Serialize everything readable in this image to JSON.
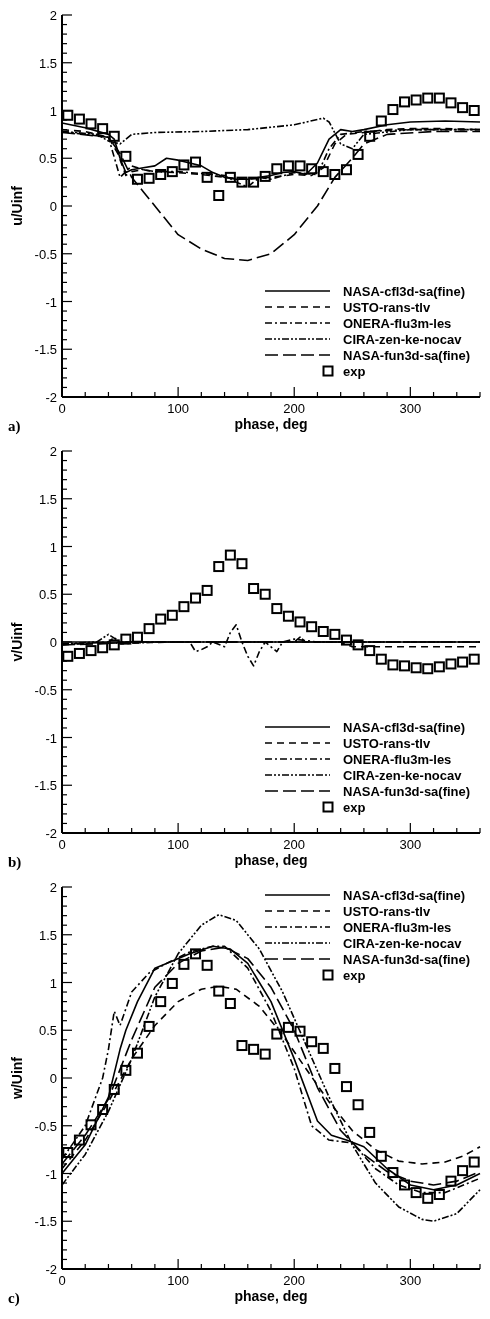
{
  "chart_data": [
    {
      "type": "line",
      "xlabel": "phase, deg",
      "ylabel": "u/Uinf",
      "annotations": [
        "a)"
      ],
      "xlim": [
        0,
        360
      ],
      "ylim": [
        -2,
        2
      ],
      "legend": "bottom right",
      "xticks": [
        0,
        {
          "value": 20,
          "label": null
        },
        {
          "value": 40,
          "label": null
        },
        {
          "value": 60,
          "label": null
        },
        {
          "value": 80,
          "label": null
        },
        100,
        {
          "value": 120,
          "label": null
        },
        {
          "value": 140,
          "label": null
        },
        {
          "value": 160,
          "label": null
        },
        {
          "value": 180,
          "label": null
        },
        200,
        {
          "value": 220,
          "label": null
        },
        {
          "value": 240,
          "label": null
        },
        {
          "value": 260,
          "label": null
        },
        {
          "value": 280,
          "label": null
        },
        300,
        {
          "value": 320,
          "label": null
        },
        {
          "value": 340,
          "label": null
        },
        {
          "value": 360,
          "label": null
        }
      ],
      "yticks": [
        -2,
        {
          "value": -1.9,
          "label": null
        },
        {
          "value": -1.8,
          "label": null
        },
        {
          "value": -1.7,
          "label": null
        },
        {
          "value": -1.6,
          "label": null
        },
        -1.5,
        {
          "value": -1.4,
          "label": null
        },
        {
          "value": -1.3,
          "label": null
        },
        {
          "value": -1.2,
          "label": null
        },
        {
          "value": -1.1,
          "label": null
        },
        -1,
        {
          "value": -0.9,
          "label": null
        },
        {
          "value": -0.8,
          "label": null
        },
        {
          "value": -0.7,
          "label": null
        },
        {
          "value": -0.6,
          "label": null
        },
        -0.5,
        {
          "value": -0.4,
          "label": null
        },
        {
          "value": -0.3,
          "label": null
        },
        {
          "value": -0.2,
          "label": null
        },
        {
          "value": -0.1,
          "label": null
        },
        0,
        {
          "value": 0.1,
          "label": null
        },
        {
          "value": 0.2,
          "label": null
        },
        {
          "value": 0.3,
          "label": null
        },
        {
          "value": 0.4,
          "label": null
        },
        0.5,
        {
          "value": 0.6,
          "label": null
        },
        {
          "value": 0.7,
          "label": null
        },
        {
          "value": 0.8,
          "label": null
        },
        {
          "value": 0.9,
          "label": null
        },
        1,
        {
          "value": 1.1,
          "label": null
        },
        {
          "value": 1.2,
          "label": null
        },
        {
          "value": 1.3,
          "label": null
        },
        {
          "value": 1.4,
          "label": null
        },
        1.5,
        {
          "value": 1.6,
          "label": null
        },
        {
          "value": 1.7,
          "label": null
        },
        {
          "value": 1.8,
          "label": null
        },
        {
          "value": 1.9,
          "label": null
        },
        2
      ],
      "series": [
        {
          "name": "NASA-cfl3d-sa(fine)",
          "color": "#000000",
          "line_style": "solid",
          "x": [
            0,
            20,
            40,
            45,
            50,
            55,
            60,
            70,
            80,
            90,
            100,
            110,
            120,
            130,
            140,
            150,
            160,
            170,
            180,
            190,
            200,
            210,
            220,
            230,
            240,
            250,
            260,
            280,
            300,
            330,
            360
          ],
          "values": [
            0.87,
            0.82,
            0.75,
            0.7,
            0.5,
            0.35,
            0.38,
            0.4,
            0.42,
            0.5,
            0.48,
            0.45,
            0.42,
            0.35,
            0.3,
            0.28,
            0.28,
            0.3,
            0.32,
            0.35,
            0.36,
            0.33,
            0.45,
            0.7,
            0.8,
            0.78,
            0.8,
            0.85,
            0.88,
            0.89,
            0.88
          ]
        },
        {
          "name": "USTO-rans-tlv",
          "color": "#000000",
          "line_style": "dashed",
          "x": [
            0,
            20,
            40,
            48,
            55,
            60,
            70,
            80,
            100,
            120,
            140,
            160,
            180,
            200,
            215,
            225,
            235,
            245,
            260,
            280,
            300,
            330,
            360
          ],
          "values": [
            0.8,
            0.78,
            0.72,
            0.55,
            0.32,
            0.36,
            0.38,
            0.36,
            0.35,
            0.33,
            0.3,
            0.28,
            0.3,
            0.33,
            0.32,
            0.4,
            0.65,
            0.75,
            0.77,
            0.8,
            0.81,
            0.81,
            0.8
          ]
        },
        {
          "name": "ONERA-flu3m-les",
          "color": "#000000",
          "line_style": "dashdot",
          "x": [
            0,
            40,
            50,
            60,
            70,
            80,
            100,
            120,
            140,
            150,
            160,
            170,
            180,
            200,
            220,
            230,
            240,
            260,
            300,
            360
          ],
          "values": [
            0.78,
            0.72,
            0.3,
            0.42,
            0.38,
            0.36,
            0.36,
            0.34,
            0.32,
            0.25,
            0.2,
            0.3,
            0.28,
            0.35,
            0.33,
            0.6,
            0.75,
            0.78,
            0.8,
            0.8
          ]
        },
        {
          "name": "CIRA-zen-ke-nocav",
          "color": "#000000",
          "line_style": "dashdotdot",
          "x": [
            0,
            30,
            40,
            50,
            60,
            80,
            120,
            160,
            200,
            225,
            230,
            240,
            250,
            260,
            300,
            360
          ],
          "values": [
            0.78,
            0.75,
            0.68,
            0.65,
            0.75,
            0.77,
            0.78,
            0.8,
            0.85,
            0.92,
            0.88,
            0.65,
            0.6,
            0.75,
            0.8,
            0.8
          ]
        },
        {
          "name": "NASA-fun3d-sa(fine)",
          "color": "#000000",
          "line_style": "longdash",
          "x": [
            0,
            40,
            50,
            60,
            70,
            80,
            100,
            120,
            140,
            160,
            180,
            200,
            220,
            235,
            250,
            260,
            280,
            320,
            360
          ],
          "values": [
            0.77,
            0.72,
            0.55,
            0.3,
            0.15,
            0,
            -0.3,
            -0.45,
            -0.55,
            -0.57,
            -0.5,
            -0.3,
            0,
            0.3,
            0.5,
            0.65,
            0.75,
            0.78,
            0.78
          ]
        },
        {
          "name": "exp",
          "type": "scatter",
          "marker": "square",
          "color": "#000000",
          "x": [
            5,
            15,
            25,
            35,
            45,
            55,
            65,
            75,
            85,
            95,
            105,
            115,
            125,
            135,
            145,
            155,
            165,
            175,
            185,
            195,
            205,
            215,
            225,
            235,
            245,
            255,
            265,
            275,
            285,
            295,
            305,
            315,
            325,
            335,
            345,
            355
          ],
          "values": [
            0.95,
            0.91,
            0.86,
            0.81,
            0.73,
            0.52,
            0.28,
            0.29,
            0.33,
            0.36,
            0.43,
            0.46,
            0.3,
            0.11,
            0.3,
            0.25,
            0.25,
            0.31,
            0.39,
            0.42,
            0.42,
            0.39,
            0.36,
            0.33,
            0.38,
            0.54,
            0.73,
            0.89,
            1.01,
            1.09,
            1.11,
            1.13,
            1.13,
            1.08,
            1.03,
            1.0
          ]
        }
      ]
    },
    {
      "type": "line",
      "xlabel": "phase, deg",
      "ylabel": "v/Uinf",
      "annotations": [
        "b)"
      ],
      "xlim": [
        0,
        360
      ],
      "ylim": [
        -2,
        2
      ],
      "legend": "bottom right",
      "xticks": [
        0,
        {
          "value": 20,
          "label": null
        },
        {
          "value": 40,
          "label": null
        },
        {
          "value": 60,
          "label": null
        },
        {
          "value": 80,
          "label": null
        },
        100,
        {
          "value": 120,
          "label": null
        },
        {
          "value": 140,
          "label": null
        },
        {
          "value": 160,
          "label": null
        },
        {
          "value": 180,
          "label": null
        },
        200,
        {
          "value": 220,
          "label": null
        },
        {
          "value": 240,
          "label": null
        },
        {
          "value": 260,
          "label": null
        },
        {
          "value": 280,
          "label": null
        },
        300,
        {
          "value": 320,
          "label": null
        },
        {
          "value": 340,
          "label": null
        },
        {
          "value": 360,
          "label": null
        }
      ],
      "yticks": [
        -2,
        {
          "value": -1.9,
          "label": null
        },
        {
          "value": -1.8,
          "label": null
        },
        {
          "value": -1.7,
          "label": null
        },
        {
          "value": -1.6,
          "label": null
        },
        -1.5,
        {
          "value": -1.4,
          "label": null
        },
        {
          "value": -1.3,
          "label": null
        },
        {
          "value": -1.2,
          "label": null
        },
        {
          "value": -1.1,
          "label": null
        },
        -1,
        {
          "value": -0.9,
          "label": null
        },
        {
          "value": -0.8,
          "label": null
        },
        {
          "value": -0.7,
          "label": null
        },
        {
          "value": -0.6,
          "label": null
        },
        -0.5,
        {
          "value": -0.4,
          "label": null
        },
        {
          "value": -0.3,
          "label": null
        },
        {
          "value": -0.2,
          "label": null
        },
        {
          "value": -0.1,
          "label": null
        },
        0,
        {
          "value": 0.1,
          "label": null
        },
        {
          "value": 0.2,
          "label": null
        },
        {
          "value": 0.3,
          "label": null
        },
        {
          "value": 0.4,
          "label": null
        },
        0.5,
        {
          "value": 0.6,
          "label": null
        },
        {
          "value": 0.7,
          "label": null
        },
        {
          "value": 0.8,
          "label": null
        },
        {
          "value": 0.9,
          "label": null
        },
        1,
        {
          "value": 1.1,
          "label": null
        },
        {
          "value": 1.2,
          "label": null
        },
        {
          "value": 1.3,
          "label": null
        },
        {
          "value": 1.4,
          "label": null
        },
        1.5,
        {
          "value": 1.6,
          "label": null
        },
        {
          "value": 1.7,
          "label": null
        },
        {
          "value": 1.8,
          "label": null
        },
        {
          "value": 1.9,
          "label": null
        },
        2
      ],
      "series": [
        {
          "name": "NASA-cfl3d-sa(fine)",
          "color": "#000000",
          "line_style": "solid",
          "x": [
            0,
            360
          ],
          "values": [
            0,
            0
          ]
        },
        {
          "name": "USTO-rans-tlv",
          "color": "#000000",
          "line_style": "dashed",
          "x": [
            0,
            100,
            200,
            240,
            250,
            300,
            360
          ],
          "values": [
            -0.02,
            0,
            0,
            0,
            -0.05,
            -0.05,
            -0.05
          ]
        },
        {
          "name": "ONERA-flu3m-les",
          "color": "#000000",
          "line_style": "dashdot",
          "x": [
            0,
            40,
            45,
            50,
            80,
            110,
            115,
            120,
            125,
            130,
            140,
            145,
            150,
            155,
            160,
            165,
            170,
            175,
            180,
            185,
            190,
            200,
            220,
            360
          ],
          "values": [
            -0.03,
            0,
            0.05,
            -0.02,
            0,
            0,
            -0.1,
            -0.08,
            -0.05,
            0,
            -0.05,
            0.1,
            0.18,
            0,
            -0.15,
            -0.25,
            -0.1,
            0,
            -0.05,
            -0.1,
            0,
            0.03,
            0,
            0
          ]
        },
        {
          "name": "CIRA-zen-ke-nocav",
          "color": "#000000",
          "line_style": "dashdotdot",
          "x": [
            0,
            30,
            40,
            50,
            100,
            200,
            205,
            210,
            250,
            360
          ],
          "values": [
            -0.02,
            0,
            0.08,
            0,
            0,
            0,
            0.05,
            0,
            0,
            0
          ]
        },
        {
          "name": "NASA-fun3d-sa(fine)",
          "color": "#000000",
          "line_style": "longdash",
          "x": [
            0,
            30,
            60,
            150,
            250,
            360
          ],
          "values": [
            -0.03,
            -0.02,
            0,
            0,
            0,
            0
          ]
        },
        {
          "name": "exp",
          "type": "scatter",
          "marker": "square",
          "color": "#000000",
          "x": [
            5,
            15,
            25,
            35,
            45,
            55,
            65,
            75,
            85,
            95,
            105,
            115,
            125,
            135,
            145,
            155,
            165,
            175,
            185,
            195,
            205,
            215,
            225,
            235,
            245,
            255,
            265,
            275,
            285,
            295,
            305,
            315,
            325,
            335,
            345,
            355
          ],
          "values": [
            -0.15,
            -0.12,
            -0.09,
            -0.06,
            -0.03,
            0.03,
            0.05,
            0.14,
            0.24,
            0.28,
            0.37,
            0.46,
            0.54,
            0.79,
            0.91,
            0.82,
            0.56,
            0.5,
            0.35,
            0.27,
            0.21,
            0.16,
            0.11,
            0.08,
            0.02,
            -0.03,
            -0.09,
            -0.18,
            -0.24,
            -0.25,
            -0.27,
            -0.28,
            -0.26,
            -0.23,
            -0.21,
            -0.18
          ]
        }
      ]
    },
    {
      "type": "line",
      "xlabel": "phase, deg",
      "ylabel": "w/Uinf",
      "annotations": [
        "c)"
      ],
      "xlim": [
        0,
        360
      ],
      "ylim": [
        -2,
        2
      ],
      "legend": "top right",
      "xticks": [
        0,
        {
          "value": 20,
          "label": null
        },
        {
          "value": 40,
          "label": null
        },
        {
          "value": 60,
          "label": null
        },
        {
          "value": 80,
          "label": null
        },
        100,
        {
          "value": 120,
          "label": null
        },
        {
          "value": 140,
          "label": null
        },
        {
          "value": 160,
          "label": null
        },
        {
          "value": 180,
          "label": null
        },
        200,
        {
          "value": 220,
          "label": null
        },
        {
          "value": 240,
          "label": null
        },
        {
          "value": 260,
          "label": null
        },
        {
          "value": 280,
          "label": null
        },
        300,
        {
          "value": 320,
          "label": null
        },
        {
          "value": 340,
          "label": null
        },
        {
          "value": 360,
          "label": null
        }
      ],
      "yticks": [
        -2,
        {
          "value": -1.9,
          "label": null
        },
        {
          "value": -1.8,
          "label": null
        },
        {
          "value": -1.7,
          "label": null
        },
        {
          "value": -1.6,
          "label": null
        },
        -1.5,
        {
          "value": -1.4,
          "label": null
        },
        {
          "value": -1.3,
          "label": null
        },
        {
          "value": -1.2,
          "label": null
        },
        {
          "value": -1.1,
          "label": null
        },
        -1,
        {
          "value": -0.9,
          "label": null
        },
        {
          "value": -0.8,
          "label": null
        },
        {
          "value": -0.7,
          "label": null
        },
        {
          "value": -0.6,
          "label": null
        },
        -0.5,
        {
          "value": -0.4,
          "label": null
        },
        {
          "value": -0.3,
          "label": null
        },
        {
          "value": -0.2,
          "label": null
        },
        {
          "value": -0.1,
          "label": null
        },
        0,
        {
          "value": 0.1,
          "label": null
        },
        {
          "value": 0.2,
          "label": null
        },
        {
          "value": 0.3,
          "label": null
        },
        {
          "value": 0.4,
          "label": null
        },
        0.5,
        {
          "value": 0.6,
          "label": null
        },
        {
          "value": 0.7,
          "label": null
        },
        {
          "value": 0.8,
          "label": null
        },
        {
          "value": 0.9,
          "label": null
        },
        1,
        {
          "value": 1.1,
          "label": null
        },
        {
          "value": 1.2,
          "label": null
        },
        {
          "value": 1.3,
          "label": null
        },
        {
          "value": 1.4,
          "label": null
        },
        1.5,
        {
          "value": 1.6,
          "label": null
        },
        {
          "value": 1.7,
          "label": null
        },
        {
          "value": 1.8,
          "label": null
        },
        {
          "value": 1.9,
          "label": null
        },
        2
      ],
      "series": [
        {
          "name": "NASA-cfl3d-sa(fine)",
          "color": "#000000",
          "line_style": "solid",
          "x": [
            0,
            20,
            40,
            50,
            55,
            65,
            80,
            90,
            110,
            130,
            145,
            160,
            180,
            200,
            220,
            232,
            245,
            260,
            280,
            300,
            320,
            340,
            360
          ],
          "values": [
            -1.0,
            -0.7,
            -0.2,
            0.3,
            0.5,
            0.8,
            1.15,
            1.2,
            1.3,
            1.38,
            1.35,
            1.2,
            0.8,
            0.2,
            -0.45,
            -0.6,
            -0.65,
            -0.72,
            -0.95,
            -1.12,
            -1.17,
            -1.12,
            -1.0
          ]
        },
        {
          "name": "USTO-rans-tlv",
          "color": "#000000",
          "line_style": "dashed",
          "x": [
            0,
            20,
            40,
            60,
            80,
            100,
            120,
            135,
            150,
            170,
            190,
            210,
            230,
            250,
            270,
            290,
            310,
            330,
            345,
            360
          ],
          "values": [
            -0.95,
            -0.65,
            -0.25,
            0.2,
            0.55,
            0.8,
            0.93,
            0.96,
            0.93,
            0.75,
            0.45,
            0.1,
            -0.25,
            -0.55,
            -0.75,
            -0.87,
            -0.9,
            -0.88,
            -0.82,
            -0.72
          ]
        },
        {
          "name": "ONERA-flu3m-les",
          "color": "#000000",
          "line_style": "dashdot",
          "x": [
            0,
            20,
            35,
            40,
            45,
            50,
            60,
            75,
            90,
            110,
            130,
            140,
            160,
            180,
            200,
            215,
            230,
            250,
            270,
            290,
            310,
            330,
            350,
            360
          ],
          "values": [
            -0.85,
            -0.5,
            0,
            0.3,
            0.7,
            0.55,
            0.9,
            1.1,
            1.2,
            1.32,
            1.38,
            1.38,
            1.15,
            0.7,
            0.1,
            -0.5,
            -0.65,
            -0.68,
            -0.95,
            -1.12,
            -1.2,
            -1.2,
            -1.1,
            -1.05
          ]
        },
        {
          "name": "CIRA-zen-ke-nocav",
          "color": "#000000",
          "line_style": "dashdotdot",
          "x": [
            0,
            20,
            40,
            60,
            80,
            100,
            120,
            135,
            150,
            170,
            190,
            210,
            230,
            250,
            270,
            290,
            310,
            320,
            340,
            360
          ],
          "values": [
            -1.12,
            -0.8,
            -0.35,
            0.2,
            0.85,
            1.3,
            1.6,
            1.71,
            1.65,
            1.35,
            0.9,
            0.35,
            -0.2,
            -0.7,
            -1.1,
            -1.35,
            -1.48,
            -1.5,
            -1.42,
            -1.17
          ]
        },
        {
          "name": "NASA-fun3d-sa(fine)",
          "color": "#000000",
          "line_style": "longdash",
          "x": [
            0,
            20,
            40,
            60,
            80,
            100,
            120,
            140,
            160,
            180,
            200,
            220,
            240,
            260,
            280,
            300,
            320,
            340,
            360
          ],
          "values": [
            -0.9,
            -0.6,
            -0.22,
            0.4,
            0.95,
            1.2,
            1.33,
            1.37,
            1.25,
            0.95,
            0.5,
            -0.1,
            -0.55,
            -0.8,
            -0.98,
            -1.08,
            -1.12,
            -1.08,
            -0.98
          ]
        },
        {
          "name": "exp",
          "type": "scatter",
          "marker": "square",
          "color": "#000000",
          "x": [
            5,
            15,
            25,
            35,
            45,
            55,
            65,
            75,
            85,
            95,
            105,
            115,
            125,
            135,
            145,
            155,
            165,
            175,
            185,
            195,
            205,
            215,
            225,
            235,
            245,
            255,
            265,
            275,
            285,
            295,
            305,
            315,
            325,
            335,
            345,
            355
          ],
          "values": [
            -0.78,
            -0.65,
            -0.49,
            -0.33,
            -0.12,
            0.08,
            0.26,
            0.54,
            0.8,
            0.99,
            1.19,
            1.3,
            1.18,
            0.91,
            0.78,
            0.34,
            0.3,
            0.25,
            0.46,
            0.53,
            0.49,
            0.38,
            0.31,
            0.1,
            -0.09,
            -0.28,
            -0.57,
            -0.82,
            -0.99,
            -1.12,
            -1.2,
            -1.26,
            -1.22,
            -1.08,
            -0.97,
            -0.88
          ]
        }
      ]
    }
  ]
}
